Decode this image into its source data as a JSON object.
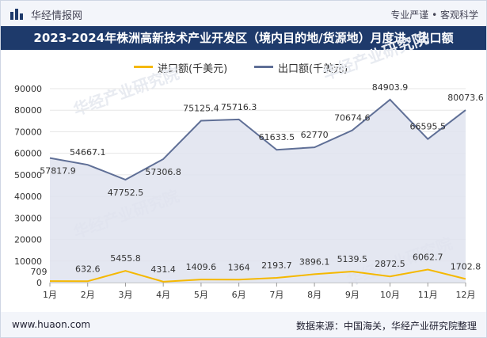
{
  "header": {
    "brand_name": "华经情报网",
    "slogan": "专业严谨 • 客观科学",
    "logo_icon": "bar-chart-icon"
  },
  "title": "2023-2024年株洲高新技术产业开发区（境内目的地/货源地）月度进、出口额",
  "watermark": "华经产业研究院",
  "chart_data": {
    "type": "line",
    "categories": [
      "1月",
      "2月",
      "3月",
      "4月",
      "5月",
      "6月",
      "7月",
      "8月",
      "9月",
      "10月",
      "11月",
      "12月"
    ],
    "series": [
      {
        "name": "进口额(千美元)",
        "color": "#f5b800",
        "values": [
          709,
          632.6,
          5455.8,
          431.4,
          1409.6,
          1364,
          2193.7,
          3896.1,
          5139.5,
          2872.5,
          6062.7,
          1702.8
        ],
        "labels": [
          "709",
          "632.6",
          "5455.8",
          "431.4",
          "1409.6",
          "1364",
          "2193.7",
          "3896.1",
          "5139.5",
          "2872.5",
          "6062.7",
          "1702.8"
        ]
      },
      {
        "name": "出口额(千美元)",
        "color": "#5f6f96",
        "values": [
          57817.9,
          54667.1,
          47752.5,
          57306.8,
          75125.4,
          75716.3,
          61633.5,
          62770,
          70674.6,
          84903.9,
          66595.5,
          80073.6
        ],
        "labels": [
          "57817.9",
          "54667.1",
          "47752.5",
          "57306.8",
          "75125.4",
          "75716.3",
          "61633.5",
          "62770",
          "70674.6",
          "84903.9",
          "66595.5",
          "80073.6"
        ]
      }
    ],
    "yticks": [
      0,
      10000,
      20000,
      30000,
      40000,
      50000,
      60000,
      70000,
      80000,
      90000
    ],
    "ylim": [
      0,
      90000
    ],
    "legend_position": "top-center",
    "grid": true
  },
  "footer": {
    "url": "www.huaon.com",
    "source": "数据来源：中国海关，华经产业研究院整理"
  }
}
